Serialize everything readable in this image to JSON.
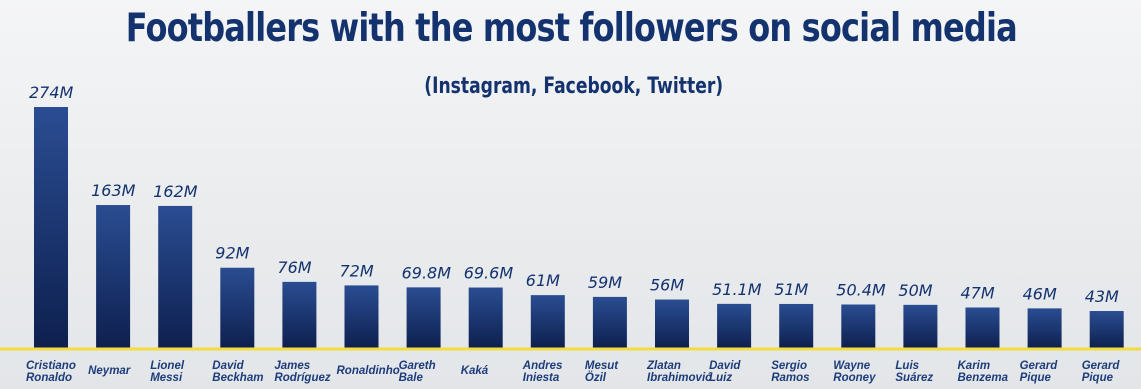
{
  "chart_data": {
    "type": "bar",
    "title": "Footballers with the most followers on social media",
    "subtitle": "(Instagram, Facebook, Twitter)",
    "categories": [
      [
        "Cristiano",
        "Ronaldo"
      ],
      [
        "Neymar"
      ],
      [
        "Lionel",
        "Messi"
      ],
      [
        "David",
        "Beckham"
      ],
      [
        "James",
        "Rodríguez"
      ],
      [
        "Ronaldinho"
      ],
      [
        "Gareth",
        "Bale"
      ],
      [
        "Kaká"
      ],
      [
        "Andres",
        "Iniesta"
      ],
      [
        "Mesut",
        "Özil"
      ],
      [
        "Zlatan",
        "Ibrahimović"
      ],
      [
        "David",
        "Luiz"
      ],
      [
        "Sergio",
        "Ramos"
      ],
      [
        "Wayne",
        "Rooney"
      ],
      [
        "Luis",
        "Suárez"
      ],
      [
        "Karim",
        "Benzema"
      ],
      [
        "Gerard",
        "Pique"
      ],
      [
        "Gerard",
        "Pique"
      ]
    ],
    "values": [
      274,
      163,
      162,
      92,
      76,
      72,
      69.8,
      69.6,
      61,
      59,
      56,
      51.1,
      51,
      50.4,
      50,
      47,
      46,
      43
    ],
    "value_labels": [
      "274M",
      "163M",
      "162M",
      "92M",
      "76M",
      "72M",
      "69.8M",
      "69.6M",
      "61M",
      "59M",
      "56M",
      "51.1M",
      "51M",
      "50.4M",
      "50M",
      "47M",
      "46M",
      "43M"
    ],
    "unit": "M",
    "ylim": [
      0,
      274
    ],
    "grid": false,
    "legend": "none",
    "colors": {
      "bar_top": "#2a4d92",
      "bar_bottom": "#0d1f4e",
      "baseline": "#f2dc3e",
      "text": "#14336e"
    }
  }
}
